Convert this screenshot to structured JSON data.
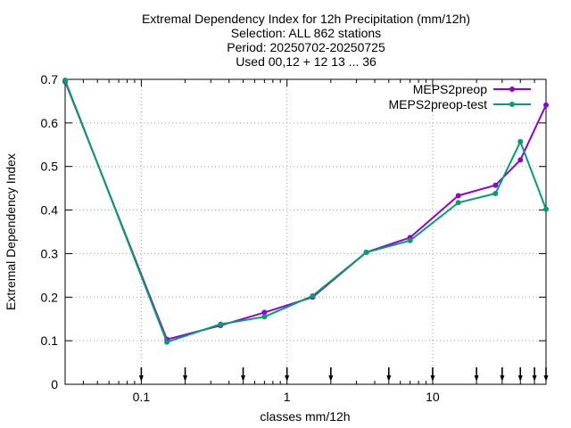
{
  "chart_data": {
    "type": "line",
    "title_lines": [
      "Extremal Dependency Index  for 12h Precipitation (mm/12h)",
      "Selection: ALL    862 stations",
      "Period: 20250702-20250725",
      "Used 00,12 + 12 13 ... 36"
    ],
    "xlabel": "classes mm/12h",
    "ylabel": "Extremal Dependency Index",
    "x_scale": "log",
    "xlim": [
      0.03,
      60
    ],
    "ylim": [
      0,
      0.7
    ],
    "x_ticks": [
      {
        "value": 0.1,
        "label": "0.1"
      },
      {
        "value": 1,
        "label": "1"
      },
      {
        "value": 10,
        "label": "10"
      }
    ],
    "y_ticks": [
      {
        "value": 0,
        "label": "0"
      },
      {
        "value": 0.1,
        "label": "0.1"
      },
      {
        "value": 0.2,
        "label": "0.2"
      },
      {
        "value": 0.3,
        "label": "0.3"
      },
      {
        "value": 0.4,
        "label": "0.4"
      },
      {
        "value": 0.5,
        "label": "0.5"
      },
      {
        "value": 0.6,
        "label": "0.6"
      },
      {
        "value": 0.7,
        "label": "0.7"
      }
    ],
    "grid": true,
    "legend_position": "top-right",
    "threshold_arrows_x": [
      0.1,
      0.2,
      0.5,
      1,
      2,
      5,
      10,
      20,
      30,
      40,
      50,
      60
    ],
    "series": [
      {
        "name": "MEPS2preop",
        "color": "#9400d3",
        "x": [
          0.03,
          0.15,
          0.35,
          0.7,
          1.5,
          3.5,
          7,
          15,
          27,
          40,
          60
        ],
        "y": [
          0.695,
          0.103,
          0.135,
          0.165,
          0.2,
          0.303,
          0.337,
          0.433,
          0.457,
          0.515,
          0.641
        ]
      },
      {
        "name": "MEPS2preop-test",
        "color": "#009e73",
        "x": [
          0.03,
          0.15,
          0.35,
          0.7,
          1.5,
          3.5,
          7,
          15,
          27,
          40,
          60
        ],
        "y": [
          0.698,
          0.097,
          0.138,
          0.155,
          0.203,
          0.303,
          0.33,
          0.417,
          0.438,
          0.557,
          0.402
        ]
      }
    ]
  }
}
